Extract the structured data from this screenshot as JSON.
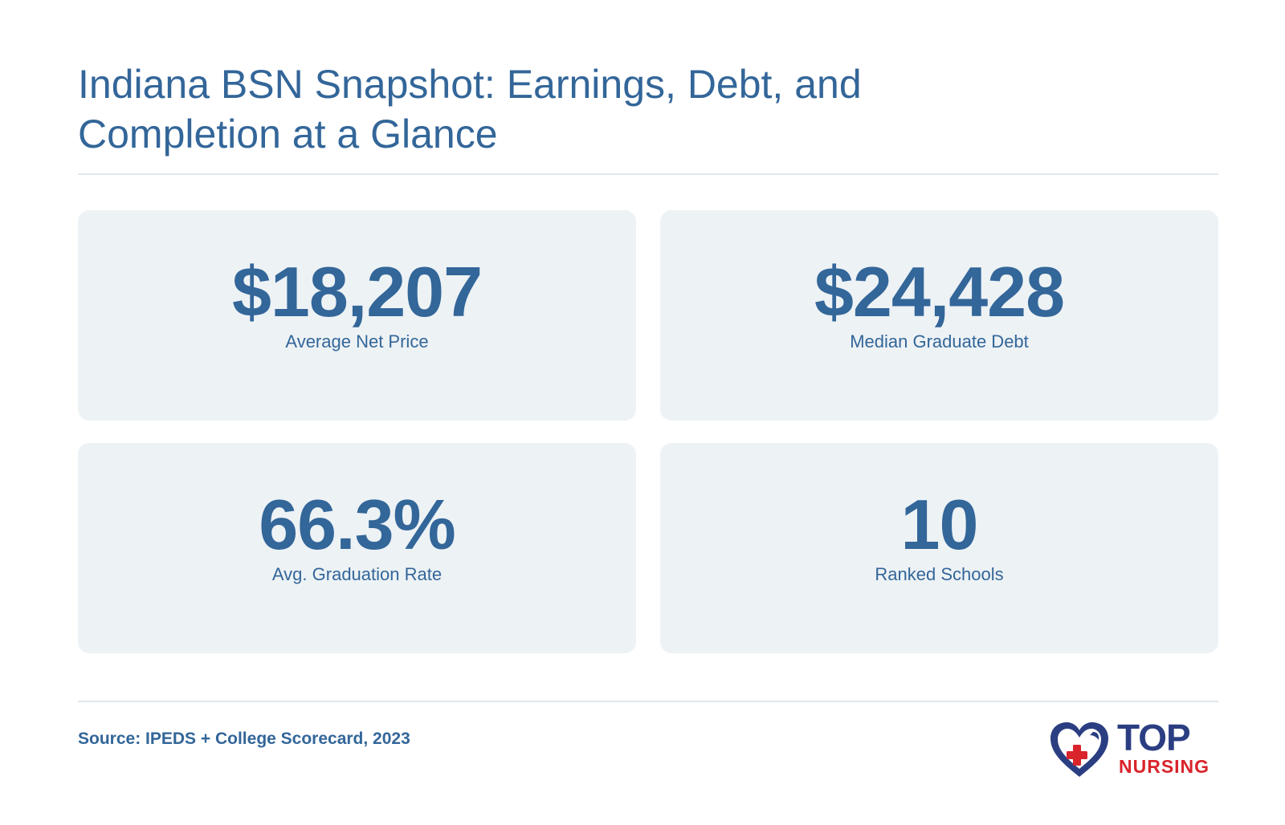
{
  "header": {
    "title": "Indiana BSN Snapshot: Earnings, Debt, and Completion at a Glance"
  },
  "stats": [
    {
      "value": "$18,207",
      "label": "Average Net Price"
    },
    {
      "value": "$24,428",
      "label": "Median Graduate Debt"
    },
    {
      "value": "66.3%",
      "label": "Avg. Graduation Rate"
    },
    {
      "value": "10",
      "label": "Ranked Schools"
    }
  ],
  "footer": {
    "source": "Source: IPEDS + College Scorecard, 2023",
    "logo": {
      "word_top": "TOP",
      "word_bottom": "NURSING",
      "icon": "heart-cross-icon"
    }
  },
  "colors": {
    "text": "#336699",
    "card_background": "#edf2f5",
    "divider": "#dfe7ee",
    "logo_navy": "#2b3e82",
    "logo_red": "#d9242b"
  }
}
